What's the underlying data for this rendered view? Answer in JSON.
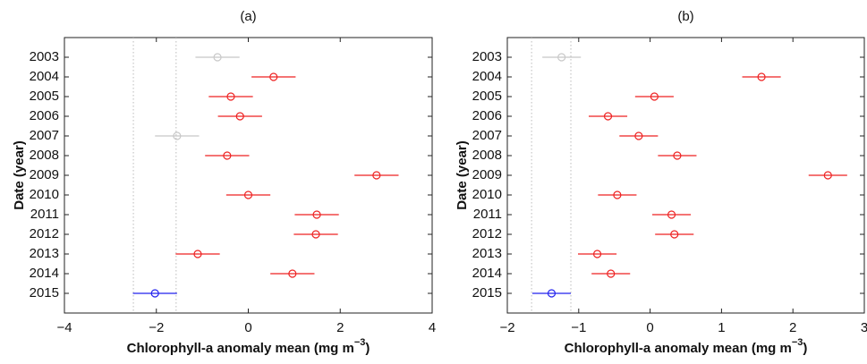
{
  "chart_data": [
    {
      "type": "errorbar",
      "title": "(a)",
      "ylabel": "Date (year)",
      "xlabel": [
        "Chlorophyll-a anomaly mean (mg m",
        "−3",
        ")"
      ],
      "categories": [
        "2003",
        "2004",
        "2005",
        "2006",
        "2007",
        "2008",
        "2009",
        "2010",
        "2011",
        "2012",
        "2013",
        "2014",
        "2015"
      ],
      "values": [
        -0.67,
        0.55,
        -0.38,
        -0.18,
        -1.55,
        -0.46,
        2.79,
        0,
        1.49,
        1.47,
        -1.1,
        0.96,
        -2.03
      ],
      "errors": [
        0.48,
        0.48,
        0.48,
        0.48,
        0.48,
        0.48,
        0.48,
        0.48,
        0.48,
        0.48,
        0.48,
        0.48,
        0.48
      ],
      "colors": [
        "#c8c8c8",
        "#ee2222",
        "#ee2222",
        "#ee2222",
        "#c8c8c8",
        "#ee2222",
        "#ee2222",
        "#ee2222",
        "#ee2222",
        "#ee2222",
        "#ee2222",
        "#ee2222",
        "#2222ee"
      ],
      "vlines": [
        -2.5,
        -1.57
      ],
      "xlim": [
        -4,
        4
      ],
      "xticks": [
        -4,
        -2,
        0,
        2,
        4
      ]
    },
    {
      "type": "errorbar",
      "title": "(b)",
      "ylabel": "Date (year)",
      "xlabel": [
        "Chlorophyll-a anomaly mean (mg m",
        "−3",
        ")"
      ],
      "categories": [
        "2003",
        "2004",
        "2005",
        "2006",
        "2007",
        "2008",
        "2009",
        "2010",
        "2011",
        "2012",
        "2013",
        "2014",
        "2015"
      ],
      "values": [
        -1.24,
        1.56,
        0.06,
        -0.59,
        -0.16,
        0.38,
        2.49,
        -0.46,
        0.3,
        0.34,
        -0.74,
        -0.55,
        -1.38
      ],
      "errors": [
        0.27,
        0.27,
        0.27,
        0.27,
        0.27,
        0.27,
        0.27,
        0.27,
        0.27,
        0.27,
        0.27,
        0.27,
        0.27
      ],
      "colors": [
        "#c8c8c8",
        "#ee2222",
        "#ee2222",
        "#ee2222",
        "#ee2222",
        "#ee2222",
        "#ee2222",
        "#ee2222",
        "#ee2222",
        "#ee2222",
        "#ee2222",
        "#ee2222",
        "#2222ee"
      ],
      "vlines": [
        -1.66,
        -1.11
      ],
      "xlim": [
        -2,
        3
      ],
      "xticks": [
        -2,
        -1,
        0,
        1,
        2,
        3
      ]
    }
  ]
}
